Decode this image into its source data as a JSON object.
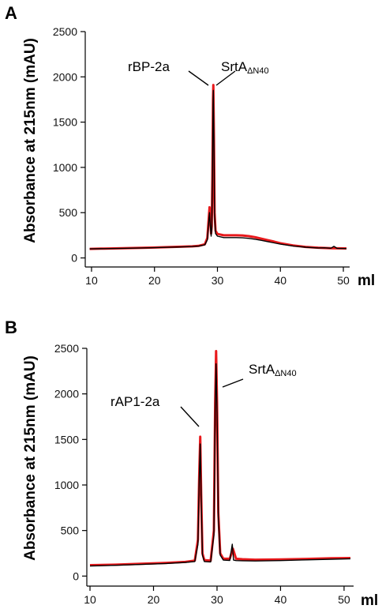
{
  "figure": {
    "panels": [
      "A",
      "B"
    ]
  },
  "chart_data": [
    {
      "type": "line",
      "panel": "A",
      "xlabel": "ml",
      "ylabel": "Absorbance at 215nm (mAU)",
      "xlim": [
        9,
        51
      ],
      "ylim": [
        -100,
        2500
      ],
      "xticks": [
        10,
        20,
        30,
        40,
        50
      ],
      "yticks": [
        0,
        500,
        1000,
        1500,
        2000,
        2500
      ],
      "grid": false,
      "annotations": [
        {
          "label": "rBP-2a",
          "sub": "",
          "x": 29.0,
          "y": 1900
        },
        {
          "label": "SrtA",
          "sub": "ΔN40",
          "x": 29.4,
          "y": 1900
        }
      ],
      "series": [
        {
          "color": "#e8191c",
          "x": [
            9.7,
            12,
            15,
            18,
            20,
            22,
            24,
            26,
            27,
            28,
            28.4,
            28.6,
            28.75,
            28.85,
            29.0,
            29.1,
            29.2,
            29.3,
            29.35,
            29.45,
            29.55,
            29.7,
            30,
            31,
            32,
            33,
            34,
            35,
            36,
            37,
            38,
            39,
            40,
            42,
            44,
            46,
            48,
            50.5
          ],
          "y": [
            100,
            103,
            108,
            112,
            115,
            119,
            123,
            128,
            133,
            150,
            220,
            420,
            560,
            430,
            270,
            350,
            900,
            1750,
            1910,
            1300,
            500,
            300,
            265,
            250,
            250,
            250,
            248,
            240,
            228,
            212,
            196,
            180,
            162,
            138,
            122,
            113,
            108,
            105
          ]
        },
        {
          "color": "#000000",
          "x": [
            9.7,
            12,
            15,
            18,
            20,
            22,
            24,
            26,
            27,
            28,
            28.4,
            28.6,
            28.75,
            28.85,
            29.0,
            29.1,
            29.2,
            29.3,
            29.35,
            29.45,
            29.55,
            29.7,
            30,
            31,
            32,
            33,
            34,
            35,
            36,
            37,
            38,
            39,
            40,
            42,
            44,
            46,
            47,
            48,
            48.5,
            49,
            50.5
          ],
          "y": [
            100,
            102,
            106,
            110,
            113,
            117,
            121,
            126,
            130,
            145,
            200,
            380,
            500,
            380,
            240,
            320,
            850,
            1700,
            1850,
            1250,
            460,
            270,
            240,
            225,
            225,
            225,
            222,
            216,
            206,
            194,
            180,
            166,
            152,
            132,
            118,
            110,
            112,
            107,
            128,
            106,
            103
          ]
        }
      ]
    },
    {
      "type": "line",
      "panel": "B",
      "xlabel": "ml",
      "ylabel": "Absorbance at 215nm (mAU)",
      "xlim": [
        9.5,
        51.5
      ],
      "ylim": [
        -110,
        2500
      ],
      "xticks": [
        10,
        20,
        30,
        40,
        50
      ],
      "yticks": [
        0,
        500,
        1000,
        1500,
        2000,
        2500
      ],
      "grid": false,
      "annotations": [
        {
          "label": "rAP1-2a",
          "sub": "",
          "x": 27.0,
          "y": 1500
        },
        {
          "label": "SrtA",
          "sub": "ΔN40",
          "x": 30.2,
          "y": 2150
        }
      ],
      "series": [
        {
          "color": "#e8191c",
          "x": [
            10,
            14,
            18,
            22,
            25,
            26.5,
            27.0,
            27.2,
            27.35,
            27.5,
            27.7,
            28,
            29,
            29.5,
            29.7,
            29.85,
            30.0,
            30.2,
            30.5,
            31,
            32,
            32.5,
            33,
            34,
            36,
            40,
            44,
            48,
            51
          ],
          "y": [
            120,
            125,
            135,
            145,
            155,
            170,
            400,
            1100,
            1530,
            900,
            250,
            175,
            170,
            500,
            1900,
            2470,
            1900,
            700,
            250,
            190,
            190,
            300,
            190,
            185,
            180,
            182,
            188,
            195,
            198
          ]
        },
        {
          "color": "#000000",
          "x": [
            10,
            14,
            18,
            22,
            25,
            26.5,
            27.0,
            27.2,
            27.35,
            27.5,
            27.7,
            28,
            29,
            29.5,
            29.7,
            29.85,
            30.0,
            30.2,
            30.5,
            31,
            32,
            32.4,
            32.6,
            33,
            34,
            36,
            40,
            44,
            48,
            51
          ],
          "y": [
            110,
            118,
            128,
            138,
            150,
            160,
            350,
            1050,
            1450,
            850,
            230,
            160,
            155,
            450,
            1800,
            2330,
            1800,
            650,
            230,
            175,
            172,
            350,
            175,
            170,
            168,
            166,
            170,
            178,
            185,
            190
          ]
        }
      ]
    }
  ]
}
